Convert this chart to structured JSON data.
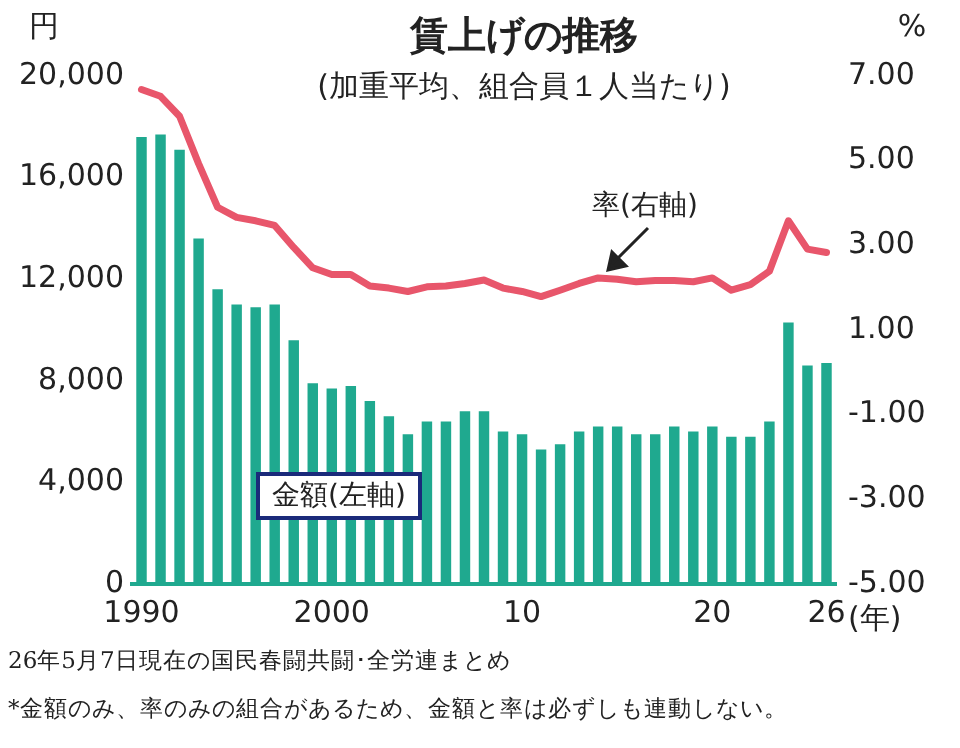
{
  "chart_data": {
    "type": "bar",
    "title": "賃上げの推移",
    "subtitle": "(加重平均、組合員１人当たり)",
    "ylabel": "円",
    "y2label": "%",
    "xlabel": "(年)",
    "categories": [
      "1990",
      null,
      null,
      null,
      null,
      null,
      null,
      null,
      null,
      null,
      "2000",
      null,
      null,
      null,
      null,
      null,
      null,
      null,
      null,
      null,
      "10",
      null,
      null,
      null,
      null,
      null,
      null,
      null,
      null,
      null,
      "20",
      null,
      null,
      null,
      null,
      null,
      "26"
    ],
    "series": [
      {
        "color": "#1fa98f",
        "values": [
          17600,
          17700,
          17100,
          13600,
          11600,
          11000,
          10900,
          11000,
          9600,
          7900,
          7700,
          7800,
          7200,
          6600,
          5900,
          6400,
          6400,
          6800,
          6800,
          6000,
          5900,
          5300,
          5500,
          6000,
          6200,
          6200,
          5900,
          5900,
          6200,
          6000,
          6200,
          5800,
          5800,
          6400,
          10300,
          8600,
          8700
        ]
      },
      {
        "type": "line",
        "axis": "y2",
        "color": "#e8566b",
        "values": [
          6.68,
          6.52,
          6.05,
          4.93,
          3.9,
          3.66,
          3.58,
          3.47,
          2.95,
          2.47,
          2.31,
          2.31,
          2.04,
          1.99,
          1.91,
          2.02,
          2.04,
          2.1,
          2.18,
          1.99,
          1.91,
          1.79,
          1.94,
          2.1,
          2.23,
          2.2,
          2.14,
          2.17,
          2.17,
          2.14,
          2.23,
          1.94,
          2.07,
          2.39,
          3.58,
          2.91,
          2.83
        ]
      }
    ],
    "ylim": [
      0,
      20000
    ],
    "yticks": [
      0,
      {
        "value": 4000,
        "label": "4,000"
      },
      {
        "value": 8000,
        "label": "8,000"
      },
      {
        "value": 12000,
        "label": "12,000"
      },
      {
        "value": 16000,
        "label": "16,000"
      },
      {
        "value": 20000,
        "label": "20,000"
      }
    ],
    "y2lim": [
      -5,
      7
    ],
    "y2ticks": [
      {
        "value": -5,
        "label": "-5.00"
      },
      {
        "value": -3,
        "label": "-3.00"
      },
      {
        "value": -1,
        "label": "-1.00"
      },
      {
        "value": 1,
        "label": "1.00"
      },
      {
        "value": 3,
        "label": "3.00"
      },
      {
        "value": 5,
        "label": "5.00"
      },
      {
        "value": 7,
        "label": "7.00"
      }
    ],
    "grid": false,
    "legend": false,
    "marker": "none",
    "annotations": [
      "率(右軸)",
      "金額(左軸)",
      "26年5月7日現在の国民春闘共闘･全労連まとめ",
      "*金額のみ、率のみの組合があるため、金額と率は必ずしも連動しない。"
    ]
  }
}
